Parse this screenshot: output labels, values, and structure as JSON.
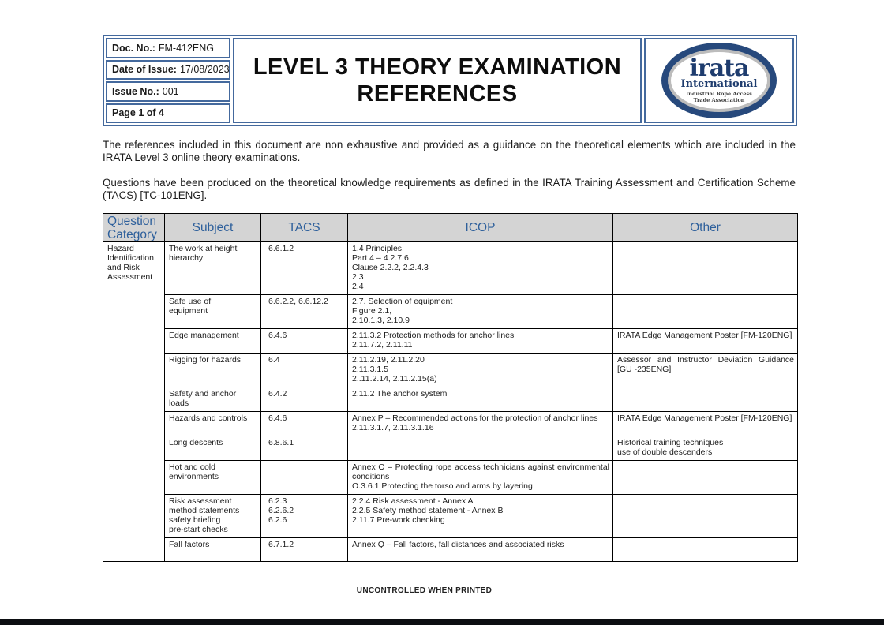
{
  "doc_info": {
    "doc_no_label": "Doc. No.:",
    "doc_no": "FM-412ENG",
    "date_label": "Date of Issue:",
    "date": "17/08/2023",
    "issue_label": "Issue No.:",
    "issue": "001",
    "page_label": "Page 1 of 4"
  },
  "title_line1": "LEVEL 3 THEORY EXAMINATION",
  "title_line2": "REFERENCES",
  "logo": {
    "main": "irata",
    "sub": "International",
    "tagline1": "Industrial Rope Access",
    "tagline2": "Trade Association"
  },
  "intro": {
    "para1": "The references included in this document are non exhaustive and provided as a guidance on the theoretical elements which are included in the IRATA Level 3 online theory examinations.",
    "para2": "Questions have been produced on the theoretical knowledge requirements as defined in the IRATA Training Assessment and Certification Scheme (TACS) [TC-101ENG]."
  },
  "table": {
    "headers": [
      "Question Category",
      "Subject",
      "TACS",
      "ICOP",
      "Other"
    ],
    "category": "Hazard\nIdentification\nand Risk\nAssessment",
    "rows": [
      {
        "subject": "The work at height\nhierarchy",
        "tacs": "6.6.1.2",
        "icop": "1.4 Principles,\nPart 4 – 4.2.7.6\nClause 2.2.2, 2.2.4.3\n2.3\n2.4",
        "other": ""
      },
      {
        "subject": "Safe use of\nequipment",
        "tacs": "6.6.2.2, 6.6.12.2",
        "icop": "2.7. Selection of equipment\nFigure 2.1,\n2.10.1.3, 2.10.9",
        "other": ""
      },
      {
        "subject": "Edge management",
        "tacs": "6.4.6",
        "icop": "2.11.3.2 Protection methods for anchor lines\n2.11.7.2, 2.11.11",
        "other": "IRATA Edge Management Poster [FM-120ENG]"
      },
      {
        "subject": "Rigging for hazards",
        "tacs": "6.4",
        "icop": "2.11.2.19, 2.11.2.20\n2.11.3.1.5\n2..11.2.14, 2.11.2.15(a)",
        "other": "Assessor and Instructor Deviation Guidance [GU -235ENG]"
      },
      {
        "subject": "Safety and anchor\nloads",
        "tacs": "6.4.2",
        "icop": "2.11.2 The anchor system",
        "other": ""
      },
      {
        "subject": "Hazards and controls",
        "tacs": "6.4.6",
        "icop": "Annex P – Recommended actions for the protection of anchor lines\n2.11.3.1.7, 2.11.3.1.16",
        "other": "IRATA Edge Management Poster [FM-120ENG]"
      },
      {
        "subject": "Long descents",
        "tacs": "6.8.6.1",
        "icop": "",
        "other": "Historical training techniques\nuse of double descenders"
      },
      {
        "subject": "Hot and cold\nenvironments",
        "tacs": "",
        "icop": "Annex O – Protecting rope access technicians against environmental conditions\nO.3.6.1 Protecting the torso and arms by layering",
        "other": ""
      },
      {
        "subject": "Risk assessment\nmethod statements\nsafety briefing\npre-start checks",
        "tacs": "6.2.3\n6.2.6.2\n6.2.6",
        "icop": "2.2.4 Risk assessment - Annex A\n2.2.5 Safety method statement - Annex B\n2.11.7 Pre-work checking",
        "other": ""
      },
      {
        "subject": "Fall factors",
        "tacs": "6.7.1.2",
        "icop": "Annex Q – Fall factors, fall distances and associated risks",
        "other": ""
      }
    ]
  },
  "footer": "UNCONTROLLED WHEN PRINTED",
  "colors": {
    "border_blue": "#44699d",
    "header_text_blue": "#2d5f9b",
    "header_bg": "#d4d4d4",
    "logo_navy": "#27497c",
    "bottom_bar": "#0c0e12"
  }
}
